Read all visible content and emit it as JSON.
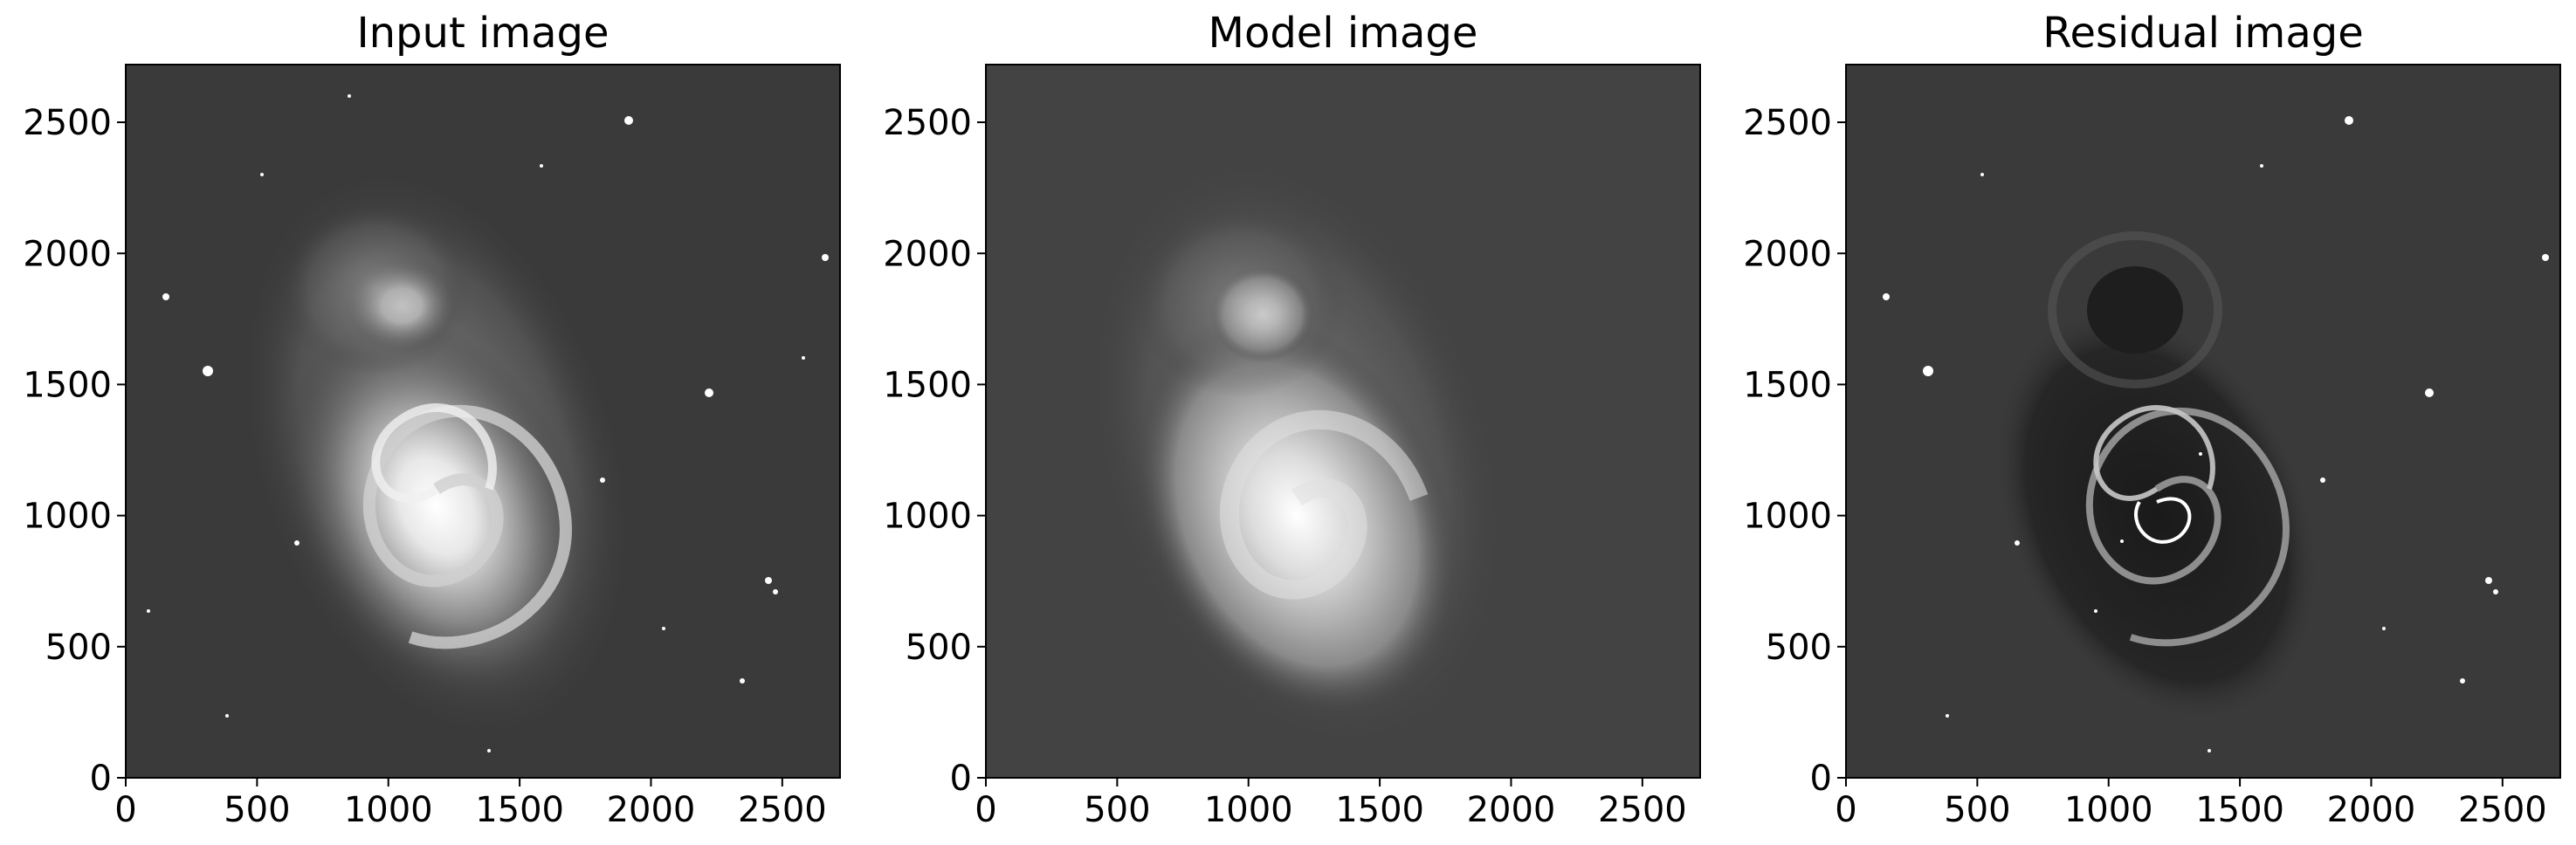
{
  "figure": {
    "panels": [
      {
        "title": "Input image",
        "xlim": [
          0,
          2720
        ],
        "ylim": [
          0,
          2720
        ],
        "xticks": [
          "0",
          "500",
          "1000",
          "1500",
          "2000",
          "2500"
        ],
        "yticks": [
          "0",
          "500",
          "1000",
          "1500",
          "2000",
          "2500"
        ],
        "colormap": "gray"
      },
      {
        "title": "Model image",
        "xlim": [
          0,
          2720
        ],
        "ylim": [
          0,
          2720
        ],
        "xticks": [
          "0",
          "500",
          "1000",
          "1500",
          "2000",
          "2500"
        ],
        "yticks": [
          "0",
          "500",
          "1000",
          "1500",
          "2000",
          "2500"
        ],
        "colormap": "gray"
      },
      {
        "title": "Residual image",
        "xlim": [
          0,
          2720
        ],
        "ylim": [
          0,
          2720
        ],
        "xticks": [
          "0",
          "500",
          "1000",
          "1500",
          "2000",
          "2500"
        ],
        "yticks": [
          "0",
          "500",
          "1000",
          "1500",
          "2000",
          "2500"
        ],
        "colormap": "gray"
      }
    ]
  }
}
